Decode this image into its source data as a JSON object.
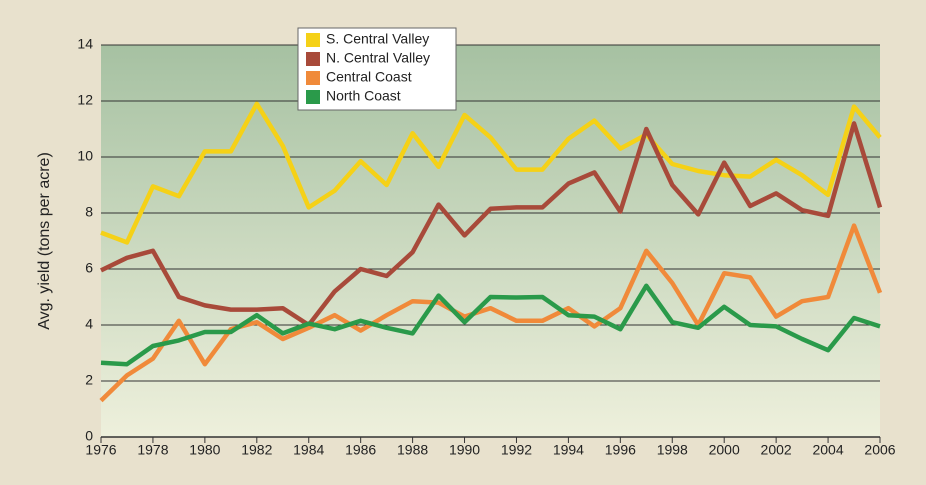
{
  "chart_data": {
    "type": "line",
    "y_label": "Avg. yield (tons per acre)",
    "x": [
      1976,
      1977,
      1978,
      1979,
      1980,
      1981,
      1982,
      1983,
      1984,
      1985,
      1986,
      1987,
      1988,
      1989,
      1990,
      1991,
      1992,
      1993,
      1994,
      1995,
      1996,
      1997,
      1998,
      1999,
      2000,
      2001,
      2002,
      2003,
      2004,
      2005,
      2006
    ],
    "series": [
      {
        "name": "S. Central Valley",
        "color": "#f5d117",
        "values": [
          7.3,
          6.95,
          8.95,
          8.6,
          10.2,
          10.2,
          11.9,
          10.4,
          8.2,
          8.8,
          9.85,
          9.0,
          10.85,
          9.65,
          11.5,
          10.7,
          9.55,
          9.55,
          10.65,
          11.3,
          10.3,
          10.8,
          9.75,
          9.5,
          9.35,
          9.3,
          9.9,
          9.35,
          8.65,
          11.8,
          10.7
        ]
      },
      {
        "name": "N. Central Valley",
        "color": "#a84a3a",
        "values": [
          5.95,
          6.4,
          6.65,
          5.0,
          4.7,
          4.55,
          4.55,
          4.6,
          4.0,
          5.2,
          6.0,
          5.75,
          6.6,
          8.3,
          7.2,
          8.15,
          8.2,
          8.2,
          9.05,
          9.45,
          8.05,
          11.0,
          9.0,
          7.95,
          9.8,
          8.25,
          8.7,
          8.1,
          7.9,
          11.2,
          8.2
        ]
      },
      {
        "name": "Central Coast",
        "color": "#f08a3a",
        "values": [
          1.3,
          2.2,
          2.8,
          4.15,
          2.6,
          3.85,
          4.1,
          3.5,
          3.9,
          4.35,
          3.8,
          4.35,
          4.85,
          4.8,
          4.3,
          4.6,
          4.15,
          4.15,
          4.6,
          3.95,
          4.6,
          6.65,
          5.5,
          4.0,
          5.85,
          5.7,
          4.3,
          4.85,
          5.0,
          7.55,
          5.15
        ]
      },
      {
        "name": "North Coast",
        "color": "#2a9a4a",
        "values": [
          2.65,
          2.6,
          3.25,
          3.45,
          3.75,
          3.75,
          4.35,
          3.7,
          4.05,
          3.85,
          4.15,
          3.9,
          3.7,
          5.05,
          4.1,
          5.0,
          4.98,
          5.0,
          4.35,
          4.3,
          3.85,
          5.4,
          4.1,
          3.9,
          4.65,
          4.0,
          3.95,
          3.5,
          3.1,
          4.25,
          3.95
        ]
      }
    ],
    "xlim": [
      1976,
      2006
    ],
    "xticks": [
      1976,
      1978,
      1980,
      1982,
      1984,
      1986,
      1988,
      1990,
      1992,
      1994,
      1996,
      1998,
      2000,
      2002,
      2004,
      2006
    ],
    "ylim": [
      0,
      14
    ],
    "yticks": [
      0,
      2,
      4,
      6,
      8,
      10,
      12,
      14
    ],
    "grid": true
  }
}
